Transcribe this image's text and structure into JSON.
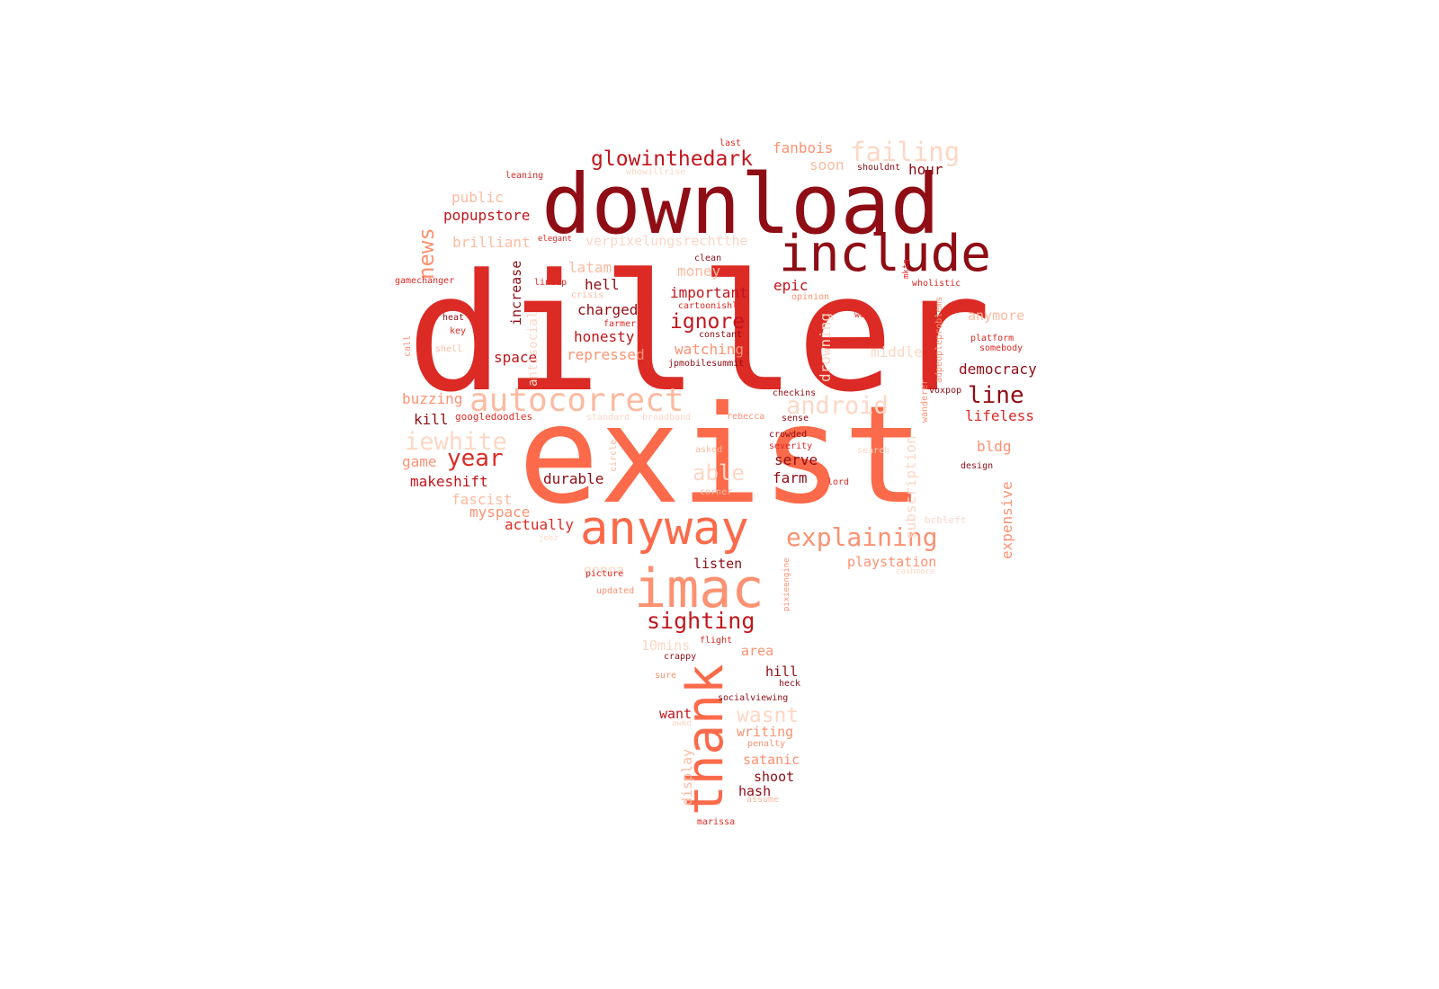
{
  "palette": {
    "darkest": "#8f0d15",
    "dark": "#c0161c",
    "red": "#dc2a24",
    "orange": "#fb6a4a",
    "salmon": "#fc9272",
    "light": "#fcbba1",
    "pale": "#fdd7c5"
  },
  "words": [
    {
      "text": "diller",
      "color": "red"
    },
    {
      "text": "exist",
      "color": "orange"
    },
    {
      "text": "download",
      "color": "darkest"
    },
    {
      "text": "include",
      "color": "darkest"
    },
    {
      "text": "anyway",
      "color": "orange"
    },
    {
      "text": "thank",
      "color": "orange"
    },
    {
      "text": "imac",
      "color": "salmon"
    },
    {
      "text": "autocorrect",
      "color": "light"
    },
    {
      "text": "sighting",
      "color": "dark"
    },
    {
      "text": "explaining",
      "color": "salmon"
    },
    {
      "text": "glowinthedark",
      "color": "dark"
    },
    {
      "text": "failing",
      "color": "pale"
    },
    {
      "text": "android",
      "color": "pale"
    },
    {
      "text": "iewhite",
      "color": "pale"
    },
    {
      "text": "line",
      "color": "darkest"
    },
    {
      "text": "year",
      "color": "red"
    },
    {
      "text": "news",
      "color": "salmon"
    },
    {
      "text": "ignore",
      "color": "dark"
    },
    {
      "text": "able",
      "color": "pale"
    },
    {
      "text": "wasnt",
      "color": "pale"
    },
    {
      "text": "popupstore",
      "color": "dark"
    },
    {
      "text": "brilliant",
      "color": "light"
    },
    {
      "text": "verpixelungsrechtthe",
      "color": "pale"
    },
    {
      "text": "latam",
      "color": "light"
    },
    {
      "text": "money",
      "color": "light"
    },
    {
      "text": "hell",
      "color": "darkest"
    },
    {
      "text": "important",
      "color": "dark"
    },
    {
      "text": "epic",
      "color": "dark"
    },
    {
      "text": "charged",
      "color": "darkest"
    },
    {
      "text": "honesty",
      "color": "dark"
    },
    {
      "text": "watching",
      "color": "salmon"
    },
    {
      "text": "repressed",
      "color": "salmon"
    },
    {
      "text": "space",
      "color": "dark"
    },
    {
      "text": "buzzing",
      "color": "salmon"
    },
    {
      "text": "kill",
      "color": "darkest"
    },
    {
      "text": "googledoodles",
      "color": "red"
    },
    {
      "text": "game",
      "color": "salmon"
    },
    {
      "text": "makeshift",
      "color": "dark"
    },
    {
      "text": "durable",
      "color": "darkest"
    },
    {
      "text": "fascist",
      "color": "light"
    },
    {
      "text": "myspace",
      "color": "salmon"
    },
    {
      "text": "actually",
      "color": "red"
    },
    {
      "text": "serve",
      "color": "darkest"
    },
    {
      "text": "farm",
      "color": "darkest"
    },
    {
      "text": "fanbois",
      "color": "salmon"
    },
    {
      "text": "soon",
      "color": "light"
    },
    {
      "text": "hour",
      "color": "darkest"
    },
    {
      "text": "public",
      "color": "light"
    },
    {
      "text": "anymore",
      "color": "light"
    },
    {
      "text": "democracy",
      "color": "darkest"
    },
    {
      "text": "lifeless",
      "color": "red"
    },
    {
      "text": "bldg",
      "color": "salmon"
    },
    {
      "text": "middle",
      "color": "pale"
    },
    {
      "text": "drowning",
      "color": "pale"
    },
    {
      "text": "subscription",
      "color": "pale"
    },
    {
      "text": "expensive",
      "color": "salmon"
    },
    {
      "text": "playstation",
      "color": "salmon"
    },
    {
      "text": "listen",
      "color": "darkest"
    },
    {
      "text": "10mins",
      "color": "pale"
    },
    {
      "text": "area",
      "color": "salmon"
    },
    {
      "text": "hill",
      "color": "darkest"
    },
    {
      "text": "want",
      "color": "dark"
    },
    {
      "text": "writing",
      "color": "salmon"
    },
    {
      "text": "satanic",
      "color": "salmon"
    },
    {
      "text": "shoot",
      "color": "darkest"
    },
    {
      "text": "hash",
      "color": "darkest"
    },
    {
      "text": "display",
      "color": "light"
    },
    {
      "text": "increase",
      "color": "darkest"
    },
    {
      "text": "antisocial",
      "color": "pale"
    },
    {
      "text": "gonna",
      "color": "pale"
    },
    {
      "text": "last",
      "color": "red"
    },
    {
      "text": "whowillrise",
      "color": "pale"
    },
    {
      "text": "leaning",
      "color": "red"
    },
    {
      "text": "shouldnt",
      "color": "darkest"
    },
    {
      "text": "elegant",
      "color": "red"
    },
    {
      "text": "clean",
      "color": "darkest"
    },
    {
      "text": "mktg",
      "color": "red"
    },
    {
      "text": "gamechanger",
      "color": "red"
    },
    {
      "text": "lineup",
      "color": "red"
    },
    {
      "text": "crisis",
      "color": "light"
    },
    {
      "text": "cartoonishly",
      "color": "red"
    },
    {
      "text": "opinion",
      "color": "salmon"
    },
    {
      "text": "wholistic",
      "color": "red"
    },
    {
      "text": "heat",
      "color": "darkest"
    },
    {
      "text": "key",
      "color": "red"
    },
    {
      "text": "farmer",
      "color": "red"
    },
    {
      "text": "constant",
      "color": "darkest"
    },
    {
      "text": "wait",
      "color": "red"
    },
    {
      "text": "adpeopleproblems",
      "color": "salmon"
    },
    {
      "text": "call",
      "color": "salmon"
    },
    {
      "text": "shell",
      "color": "light"
    },
    {
      "text": "jpmobilesummit",
      "color": "darkest"
    },
    {
      "text": "platform",
      "color": "red"
    },
    {
      "text": "somebody",
      "color": "red"
    },
    {
      "text": "checkins",
      "color": "darkest"
    },
    {
      "text": "wanderer",
      "color": "salmon"
    },
    {
      "text": "voxpop",
      "color": "darkest"
    },
    {
      "text": "standard",
      "color": "pale"
    },
    {
      "text": "broadband",
      "color": "pale"
    },
    {
      "text": "rebecca",
      "color": "salmon"
    },
    {
      "text": "sense",
      "color": "darkest"
    },
    {
      "text": "crowded",
      "color": "darkest"
    },
    {
      "text": "severity",
      "color": "red"
    },
    {
      "text": "asked",
      "color": "light"
    },
    {
      "text": "circle",
      "color": "light"
    },
    {
      "text": "design",
      "color": "darkest"
    },
    {
      "text": "lord",
      "color": "red"
    },
    {
      "text": "corner",
      "color": "light"
    },
    {
      "text": "jeez",
      "color": "pale"
    },
    {
      "text": "picture",
      "color": "red"
    },
    {
      "text": "pixieengine",
      "color": "salmon"
    },
    {
      "text": "cashmore",
      "color": "pale"
    },
    {
      "text": "updated",
      "color": "salmon"
    },
    {
      "text": "flight",
      "color": "red"
    },
    {
      "text": "crappy",
      "color": "darkest"
    },
    {
      "text": "sure",
      "color": "salmon"
    },
    {
      "text": "heck",
      "color": "darkest"
    },
    {
      "text": "socialviewing",
      "color": "darkest"
    },
    {
      "text": "awkd",
      "color": "pale"
    },
    {
      "text": "penalty",
      "color": "salmon"
    },
    {
      "text": "assume",
      "color": "light"
    },
    {
      "text": "marissa",
      "color": "red"
    },
    {
      "text": "search",
      "color": "pale"
    },
    {
      "text": "bcbleft",
      "color": "pale"
    }
  ]
}
